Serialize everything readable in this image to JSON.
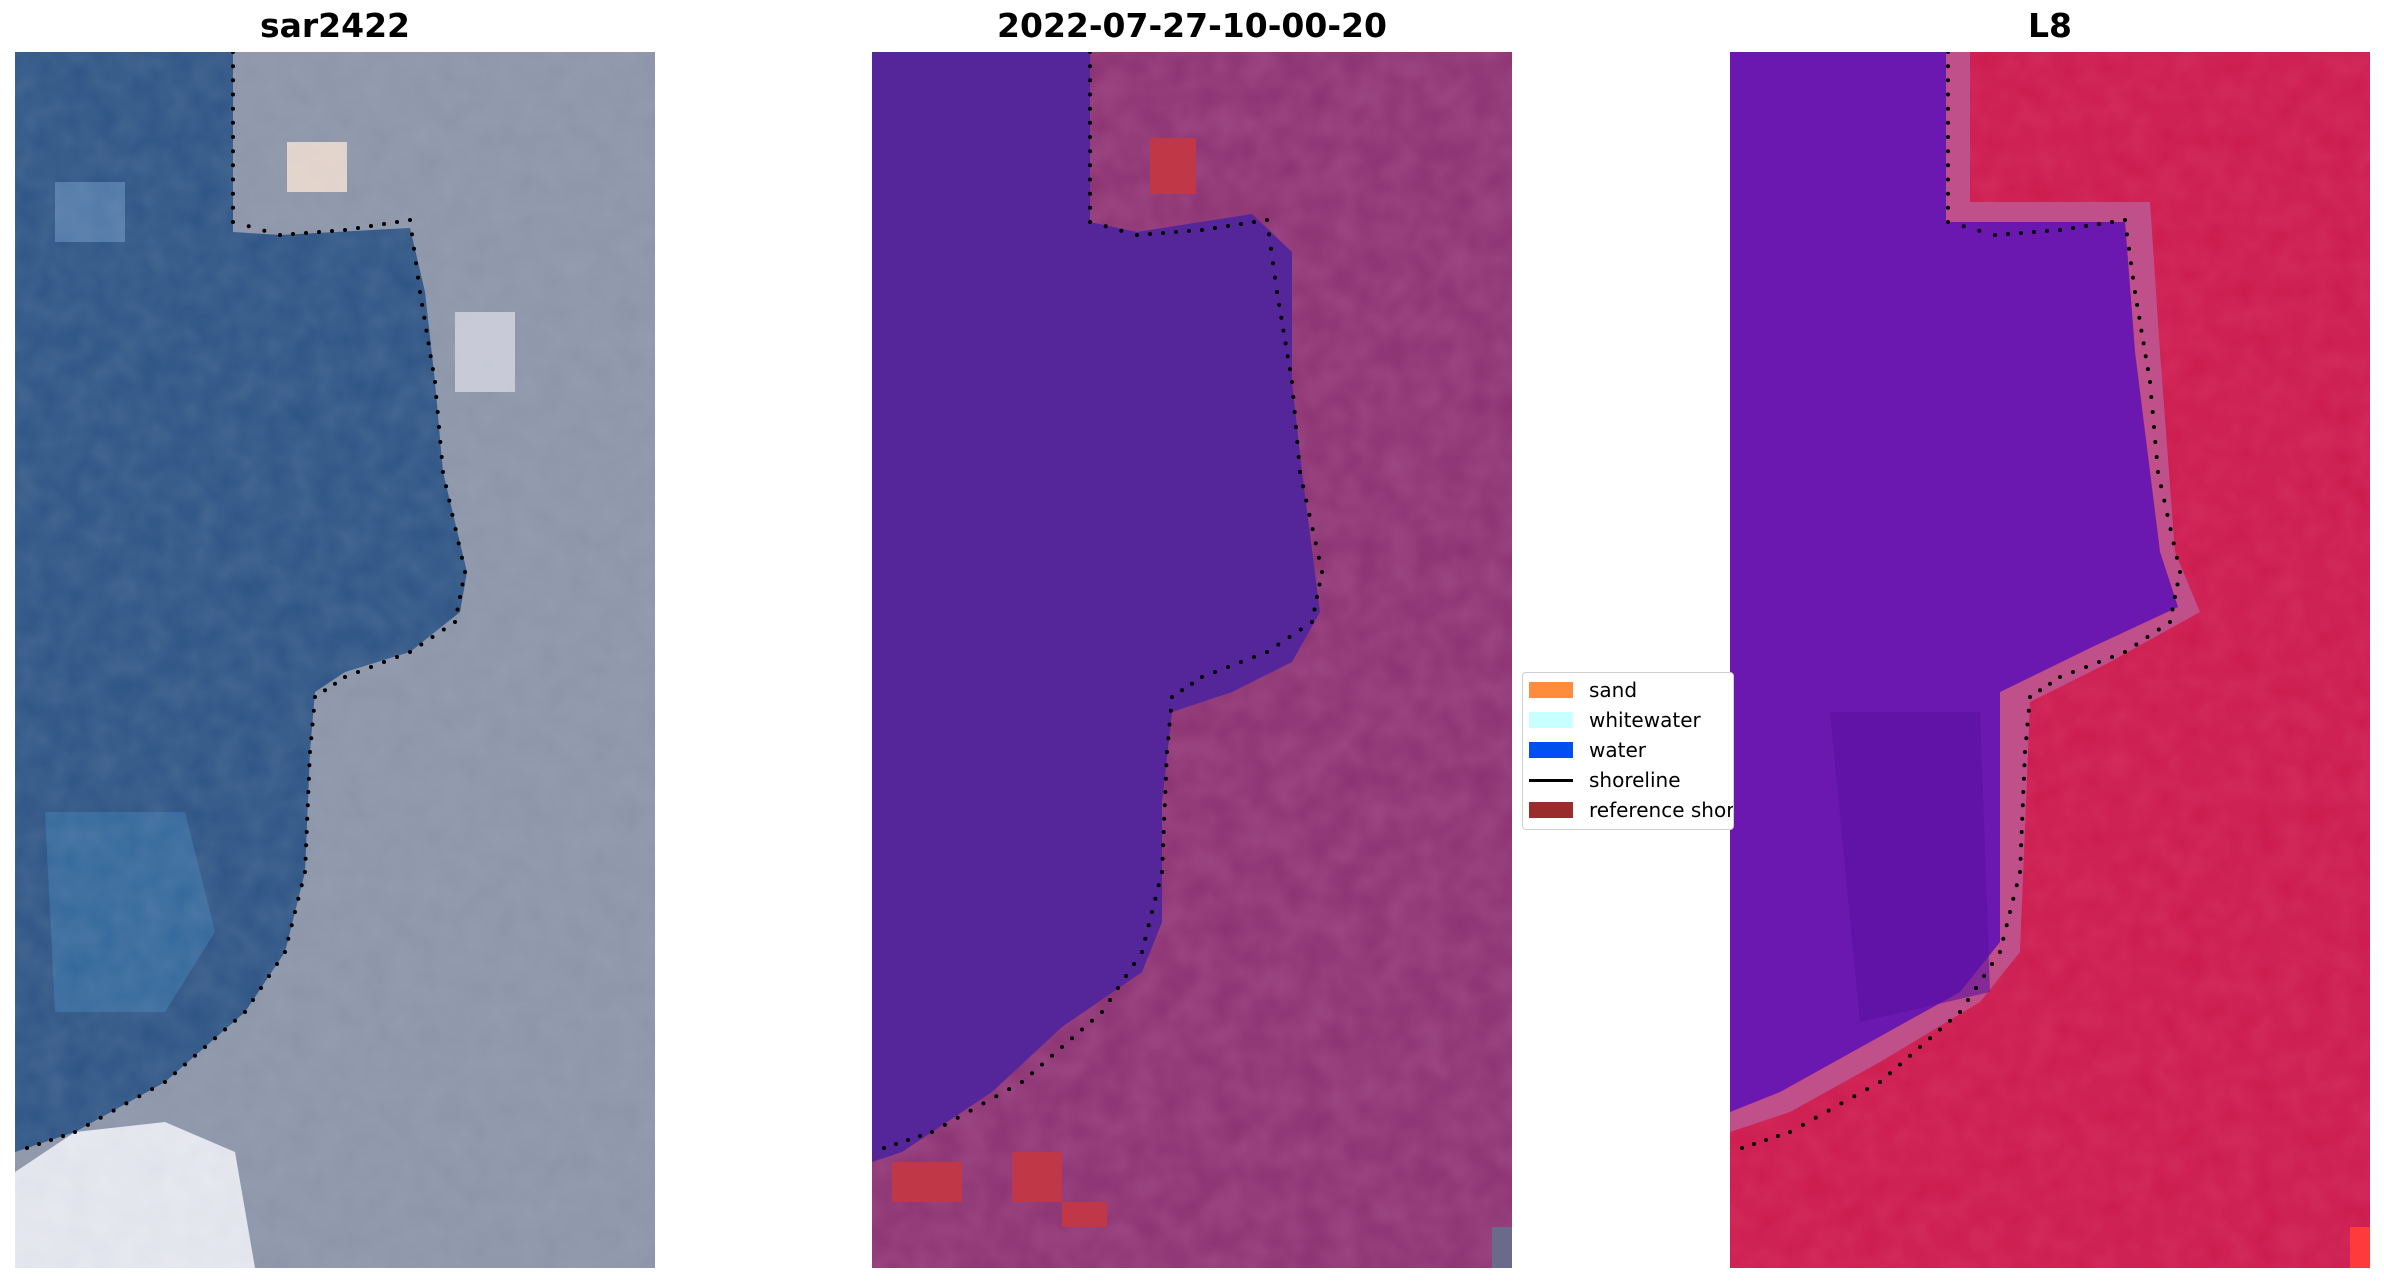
{
  "panels": [
    {
      "title": "sar2422"
    },
    {
      "title": "2022-07-27-10-00-20"
    },
    {
      "title": "L8"
    }
  ],
  "legend": {
    "items": [
      {
        "label": "sand",
        "color": "#ff8c3c",
        "kind": "patch"
      },
      {
        "label": "whitewater",
        "color": "#c8ffff",
        "kind": "patch"
      },
      {
        "label": "water",
        "color": "#0050f0",
        "kind": "patch"
      },
      {
        "label": "shoreline",
        "color": "#000000",
        "kind": "line"
      },
      {
        "label": "reference shoreline",
        "color": "#9a2c2c",
        "kind": "patch"
      }
    ]
  },
  "colors": {
    "sar_water": "#2c5384",
    "sar_land": "#8a92a6",
    "class_water": "#55269a",
    "class_land": "#8a3070",
    "class_sand_overlay": "#c03848",
    "l8_water": "#6a18b0",
    "l8_land": "#cc1a4c"
  }
}
